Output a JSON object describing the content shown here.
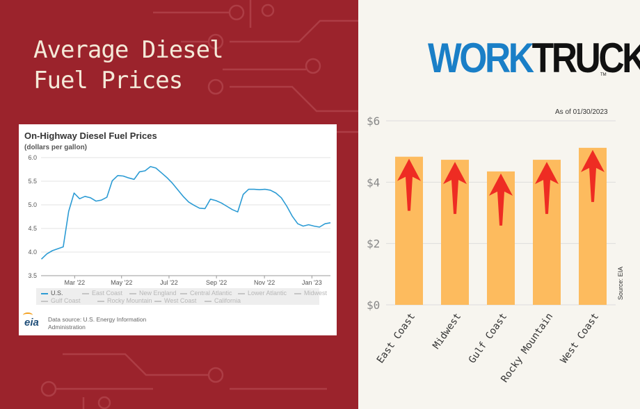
{
  "heading": {
    "line1": "Average Diesel",
    "line2": "Fuel Prices"
  },
  "eia_chart": {
    "title": "On-Highway Diesel Fuel Prices",
    "subtitle": "(dollars per gallon)",
    "source_text": "Data source: U.S. Energy Information Administration",
    "logo_text": "eia",
    "legend": [
      {
        "label": "U.S.",
        "active": true
      },
      {
        "label": "East Coast",
        "active": false
      },
      {
        "label": "New England",
        "active": false
      },
      {
        "label": "Central Atlantic",
        "active": false
      },
      {
        "label": "Lower Atlantic",
        "active": false
      },
      {
        "label": "Midwest",
        "active": false
      },
      {
        "label": "Gulf Coast",
        "active": false
      },
      {
        "label": "Rocky Mountain",
        "active": false
      },
      {
        "label": "West Coast",
        "active": false
      },
      {
        "label": "California",
        "active": false
      }
    ]
  },
  "brand": {
    "part1": "WORK",
    "part2": "TRUCK",
    "tm": "TM"
  },
  "bar_chart_meta": {
    "as_of": "As of 01/30/2023",
    "source": "Source: EIA"
  },
  "chart_data": [
    {
      "type": "line",
      "title": "On-Highway Diesel Fuel Prices",
      "ylabel": "(dollars per gallon)",
      "ylim": [
        3.5,
        6.0
      ],
      "yticks": [
        "6.0",
        "5.5",
        "5.0",
        "4.5",
        "4.0",
        "3.5"
      ],
      "xtick_labels": [
        "Mar '22",
        "May '22",
        "Jul '22",
        "Sep '22",
        "Nov '22",
        "Jan '23"
      ],
      "xtick_positions": [
        6.1,
        14.7,
        23.4,
        32.1,
        40.9,
        49.6
      ],
      "grid": true,
      "color": "#2b9bd4",
      "series": [
        {
          "name": "U.S.",
          "x": [
            0,
            1,
            2,
            3,
            4,
            5,
            6,
            7,
            8,
            9,
            10,
            11,
            12,
            13,
            14,
            15,
            16,
            17,
            18,
            19,
            20,
            21,
            22,
            23,
            24,
            25,
            26,
            27,
            28,
            29,
            30,
            31,
            32,
            33,
            34,
            35,
            36,
            37,
            38,
            39,
            40,
            41,
            42,
            43,
            44,
            45,
            46,
            47,
            48,
            49,
            50,
            51,
            52,
            53
          ],
          "values": [
            3.85,
            3.96,
            4.03,
            4.07,
            4.11,
            4.86,
            5.25,
            5.13,
            5.18,
            5.15,
            5.08,
            5.1,
            5.16,
            5.51,
            5.62,
            5.61,
            5.57,
            5.54,
            5.7,
            5.72,
            5.81,
            5.78,
            5.68,
            5.58,
            5.46,
            5.32,
            5.18,
            5.06,
            4.99,
            4.93,
            4.92,
            5.12,
            5.09,
            5.04,
            4.97,
            4.9,
            4.85,
            5.22,
            5.33,
            5.33,
            5.32,
            5.33,
            5.31,
            5.25,
            5.15,
            4.97,
            4.76,
            4.6,
            4.55,
            4.58,
            4.55,
            4.53,
            4.6,
            4.62
          ]
        }
      ]
    },
    {
      "type": "bar",
      "categories": [
        "East Coast",
        "Midwest",
        "Gulf Coast",
        "Rocky Mountain",
        "West Coast"
      ],
      "values": [
        4.83,
        4.73,
        4.35,
        4.73,
        5.12
      ],
      "ylim": [
        0,
        6
      ],
      "yticks": [
        "$6",
        "$4",
        "$2",
        "$0"
      ],
      "bar_color": "#fdbb5e",
      "arrow_color": "#ee2c23",
      "annotation": "up arrows on every bar"
    }
  ]
}
